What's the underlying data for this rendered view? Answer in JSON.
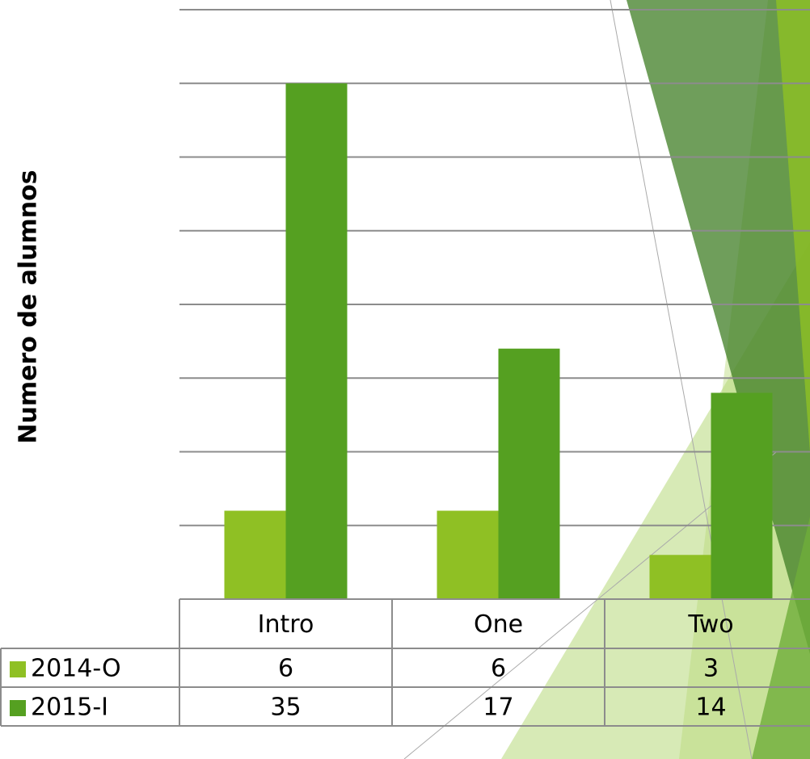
{
  "chart_data": {
    "type": "bar",
    "y_label": "Numero de alumnos",
    "categories": [
      "Intro",
      "One",
      "Two"
    ],
    "series": [
      {
        "name": "2014-O",
        "color": "#8fc024",
        "values": [
          6,
          6,
          3
        ]
      },
      {
        "name": "2015-I",
        "color": "#55a021",
        "values": [
          35,
          17,
          14
        ]
      }
    ],
    "ylim": [
      0,
      40
    ],
    "yticks": [
      0,
      5,
      10,
      15,
      20,
      25,
      30,
      35,
      40
    ],
    "grid": true,
    "data_table": true
  }
}
